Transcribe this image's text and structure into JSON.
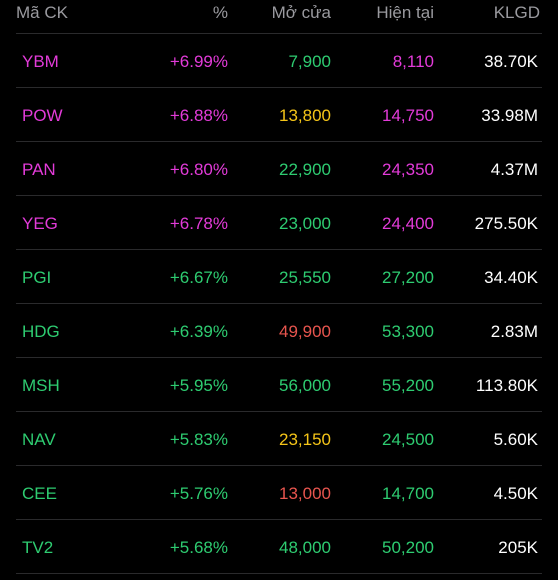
{
  "colors": {
    "ceiling": "#e33bd9",
    "up": "#2ecc71",
    "reference": "#f5c518",
    "down": "#e8554e",
    "neutral": "#ffffff",
    "header": "#9a9a9f"
  },
  "header": {
    "symbol": "Mã CK",
    "percent": "%",
    "open": "Mở cửa",
    "current": "Hiện tại",
    "volume": "KLGD"
  },
  "rows": [
    {
      "symbol": "YBM",
      "percent": "+6.99%",
      "open": "7,900",
      "current": "8,110",
      "volume": "38.70K",
      "symbol_color": "#e33bd9",
      "percent_color": "#e33bd9",
      "open_color": "#2ecc71",
      "current_color": "#e33bd9"
    },
    {
      "symbol": "POW",
      "percent": "+6.88%",
      "open": "13,800",
      "current": "14,750",
      "volume": "33.98M",
      "symbol_color": "#e33bd9",
      "percent_color": "#e33bd9",
      "open_color": "#f5c518",
      "current_color": "#e33bd9"
    },
    {
      "symbol": "PAN",
      "percent": "+6.80%",
      "open": "22,900",
      "current": "24,350",
      "volume": "4.37M",
      "symbol_color": "#e33bd9",
      "percent_color": "#e33bd9",
      "open_color": "#2ecc71",
      "current_color": "#e33bd9"
    },
    {
      "symbol": "YEG",
      "percent": "+6.78%",
      "open": "23,000",
      "current": "24,400",
      "volume": "275.50K",
      "symbol_color": "#e33bd9",
      "percent_color": "#e33bd9",
      "open_color": "#2ecc71",
      "current_color": "#e33bd9"
    },
    {
      "symbol": "PGI",
      "percent": "+6.67%",
      "open": "25,550",
      "current": "27,200",
      "volume": "34.40K",
      "symbol_color": "#2ecc71",
      "percent_color": "#2ecc71",
      "open_color": "#2ecc71",
      "current_color": "#2ecc71"
    },
    {
      "symbol": "HDG",
      "percent": "+6.39%",
      "open": "49,900",
      "current": "53,300",
      "volume": "2.83M",
      "symbol_color": "#2ecc71",
      "percent_color": "#2ecc71",
      "open_color": "#e8554e",
      "current_color": "#2ecc71"
    },
    {
      "symbol": "MSH",
      "percent": "+5.95%",
      "open": "56,000",
      "current": "55,200",
      "volume": "113.80K",
      "symbol_color": "#2ecc71",
      "percent_color": "#2ecc71",
      "open_color": "#2ecc71",
      "current_color": "#2ecc71"
    },
    {
      "symbol": "NAV",
      "percent": "+5.83%",
      "open": "23,150",
      "current": "24,500",
      "volume": "5.60K",
      "symbol_color": "#2ecc71",
      "percent_color": "#2ecc71",
      "open_color": "#f5c518",
      "current_color": "#2ecc71"
    },
    {
      "symbol": "CEE",
      "percent": "+5.76%",
      "open": "13,000",
      "current": "14,700",
      "volume": "4.50K",
      "symbol_color": "#2ecc71",
      "percent_color": "#2ecc71",
      "open_color": "#e8554e",
      "current_color": "#2ecc71"
    },
    {
      "symbol": "TV2",
      "percent": "+5.68%",
      "open": "48,000",
      "current": "50,200",
      "volume": "205K",
      "symbol_color": "#2ecc71",
      "percent_color": "#2ecc71",
      "open_color": "#2ecc71",
      "current_color": "#2ecc71"
    }
  ]
}
